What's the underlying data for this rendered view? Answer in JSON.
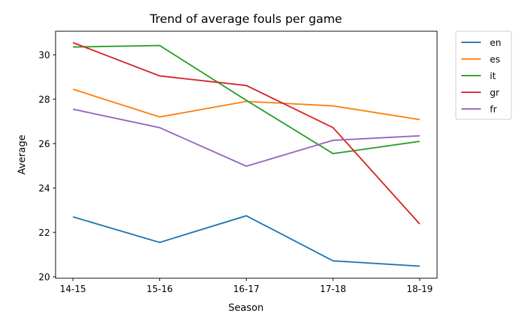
{
  "chart_data": {
    "type": "line",
    "title": "Trend of average fouls per game",
    "xlabel": "Season",
    "ylabel": "Average",
    "categories": [
      "14-15",
      "15-16",
      "16-17",
      "17-18",
      "18-19"
    ],
    "ylim": [
      20,
      31
    ],
    "yticks": [
      20,
      22,
      24,
      26,
      28,
      30
    ],
    "grid": false,
    "legend_position": "outside-right",
    "series": [
      {
        "name": "en",
        "color": "#1f77b4",
        "values": [
          22.7,
          21.55,
          22.75,
          20.72,
          20.48
        ]
      },
      {
        "name": "es",
        "color": "#ff7f0e",
        "values": [
          28.45,
          27.2,
          27.9,
          27.7,
          27.08
        ]
      },
      {
        "name": "it",
        "color": "#2ca02c",
        "values": [
          30.35,
          30.42,
          27.95,
          25.55,
          26.1
        ]
      },
      {
        "name": "gr",
        "color": "#d62728",
        "values": [
          30.55,
          29.05,
          28.62,
          26.72,
          22.38
        ]
      },
      {
        "name": "fr",
        "color": "#9467bd",
        "values": [
          27.55,
          26.72,
          24.98,
          26.15,
          26.35
        ]
      }
    ]
  }
}
